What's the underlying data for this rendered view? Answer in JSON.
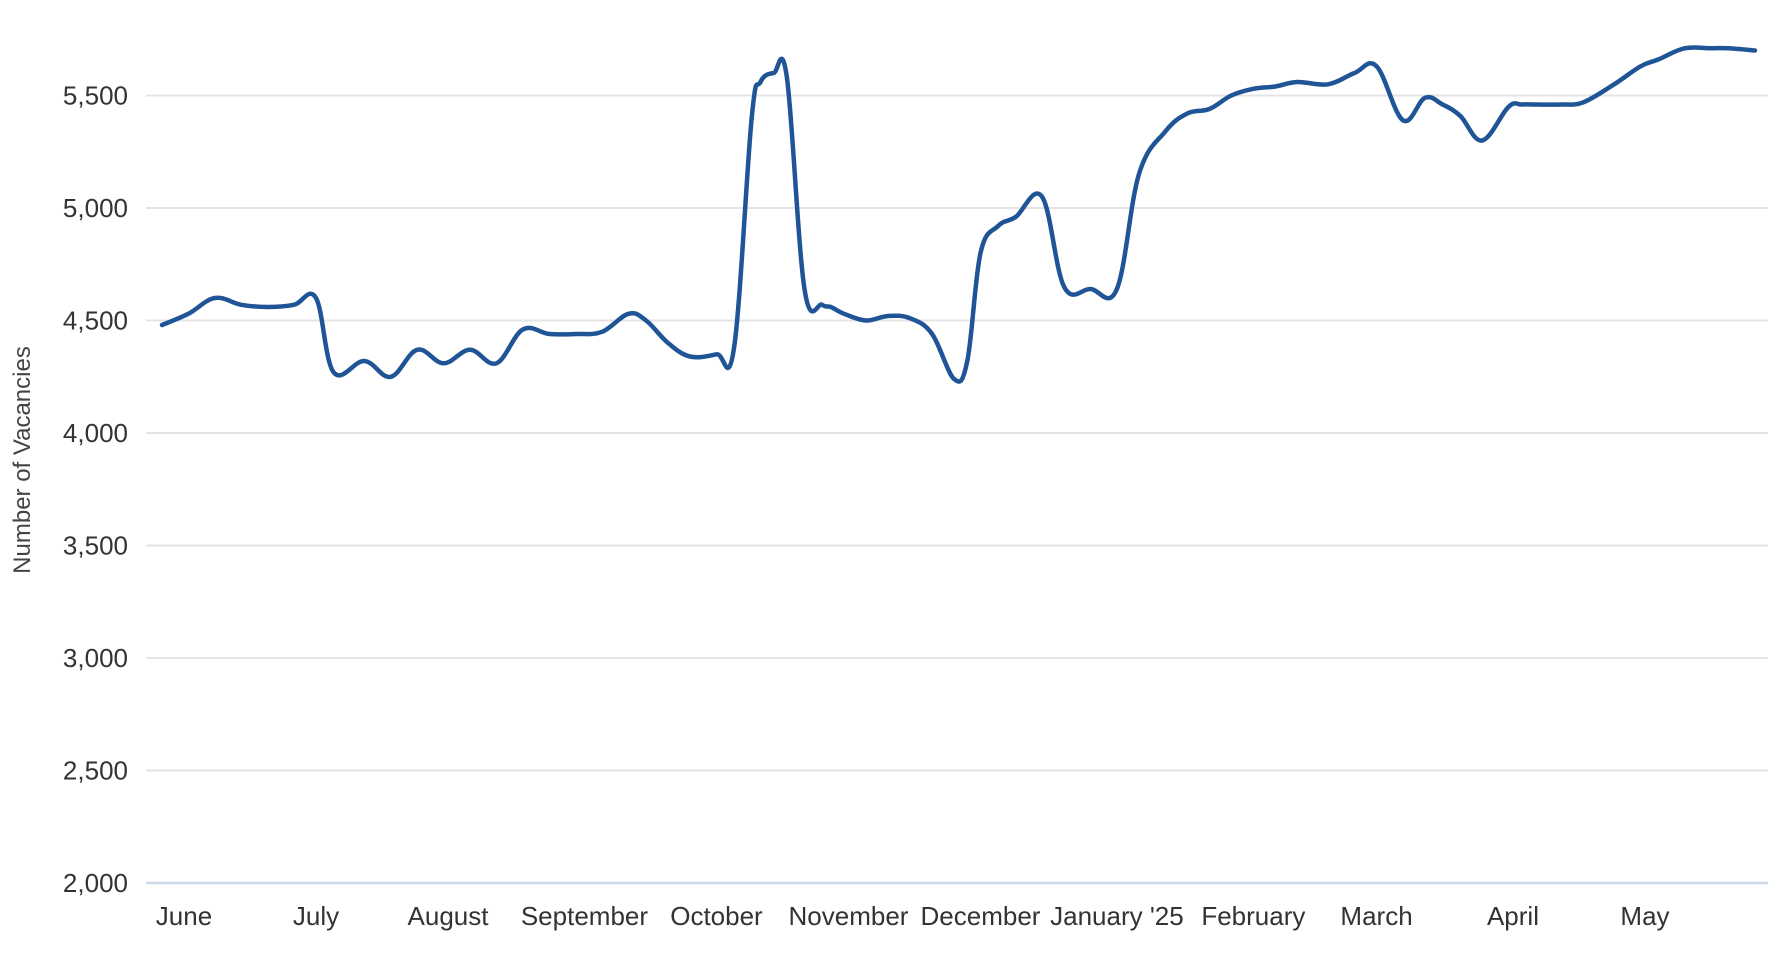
{
  "chart_data": {
    "type": "line",
    "title": "",
    "xlabel": "",
    "ylabel": "Number of Vacancies",
    "ylim": [
      2000,
      5800
    ],
    "y_ticks": [
      2000,
      2500,
      3000,
      3500,
      4000,
      4500,
      5000,
      5500
    ],
    "y_tick_labels": [
      "2,000",
      "2,500",
      "3,000",
      "3,500",
      "4,000",
      "4,500",
      "5,000",
      "5,500"
    ],
    "x_range_days": [
      0,
      362
    ],
    "months": [
      {
        "label": "June",
        "day": 5
      },
      {
        "label": "July",
        "day": 35
      },
      {
        "label": "August",
        "day": 65
      },
      {
        "label": "September",
        "day": 96
      },
      {
        "label": "October",
        "day": 126
      },
      {
        "label": "November",
        "day": 156
      },
      {
        "label": "December",
        "day": 186
      },
      {
        "label": "January '25",
        "day": 217
      },
      {
        "label": "February",
        "day": 248
      },
      {
        "label": "March",
        "day": 276
      },
      {
        "label": "April",
        "day": 307
      },
      {
        "label": "May",
        "day": 337
      }
    ],
    "grid": true,
    "legend": "none",
    "series": [
      {
        "color": "#1f5596",
        "x": [
          0,
          6,
          12,
          18,
          24,
          30,
          35,
          39,
          46,
          52,
          58,
          64,
          70,
          76,
          82,
          88,
          94,
          100,
          106,
          110,
          115,
          120,
          126,
          130,
          134,
          136,
          139,
          142,
          146,
          150,
          152,
          155,
          160,
          165,
          170,
          175,
          180,
          183,
          186,
          190,
          194,
          200,
          205,
          211,
          217,
          222,
          228,
          233,
          238,
          243,
          248,
          253,
          258,
          265,
          271,
          276,
          282,
          287,
          291,
          295,
          300,
          306,
          309,
          312,
          318,
          323,
          330,
          336,
          340,
          346,
          352,
          356,
          362
        ],
        "y": [
          4480,
          4530,
          4600,
          4570,
          4560,
          4570,
          4600,
          4270,
          4320,
          4250,
          4370,
          4310,
          4370,
          4310,
          4460,
          4440,
          4440,
          4450,
          4530,
          4500,
          4400,
          4340,
          4350,
          4380,
          5400,
          5560,
          5600,
          5580,
          4640,
          4570,
          4560,
          4530,
          4500,
          4520,
          4510,
          4440,
          4240,
          4320,
          4800,
          4920,
          4960,
          5050,
          4650,
          4640,
          4640,
          5150,
          5340,
          5420,
          5440,
          5500,
          5530,
          5540,
          5560,
          5550,
          5600,
          5630,
          5390,
          5490,
          5460,
          5410,
          5300,
          5450,
          5460,
          5460,
          5460,
          5470,
          5550,
          5630,
          5660,
          5710,
          5710,
          5710,
          5700
        ]
      }
    ]
  }
}
